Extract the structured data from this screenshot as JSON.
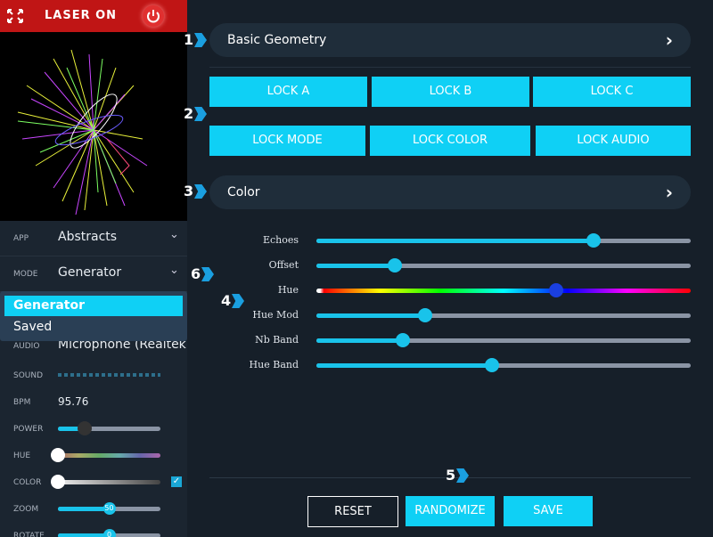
{
  "header": {
    "title": "LASER ON"
  },
  "sidebar": {
    "rows": [
      {
        "label": "APP",
        "value": "Abstracts"
      },
      {
        "label": "MODE",
        "value": "Generator"
      }
    ],
    "dropdown": [
      "Generator",
      "Saved"
    ],
    "audio": {
      "label": "AUDIO",
      "value": "Microphone (Realtek"
    },
    "sound": {
      "label": "SOUND"
    },
    "bpm": {
      "label": "BPM",
      "value": 95.76
    },
    "sliders": [
      {
        "label": "POWER",
        "value": 26
      },
      {
        "label": "HUE",
        "value": 0
      },
      {
        "label": "COLOR",
        "value": 0
      },
      {
        "label": "ZOOM",
        "value": 50
      },
      {
        "label": "ROTATE",
        "value": 0,
        "centered": true
      }
    ]
  },
  "panel": {
    "sections": [
      "Basic Geometry",
      "Color"
    ],
    "locks": [
      "LOCK A",
      "LOCK B",
      "LOCK C",
      "LOCK MODE",
      "LOCK COLOR",
      "LOCK AUDIO"
    ],
    "sliders": [
      {
        "label": "Echoes",
        "value": 74
      },
      {
        "label": "Offset",
        "value": 21
      },
      {
        "label": "Hue",
        "value": 64
      },
      {
        "label": "Hue Mod",
        "value": 29
      },
      {
        "label": "Nb Band",
        "value": 23
      },
      {
        "label": "Hue Band",
        "value": 47
      }
    ],
    "actions": [
      "RESET",
      "RANDOMIZE",
      "SAVE"
    ]
  },
  "markers": [
    1,
    2,
    3,
    4,
    5,
    6
  ]
}
